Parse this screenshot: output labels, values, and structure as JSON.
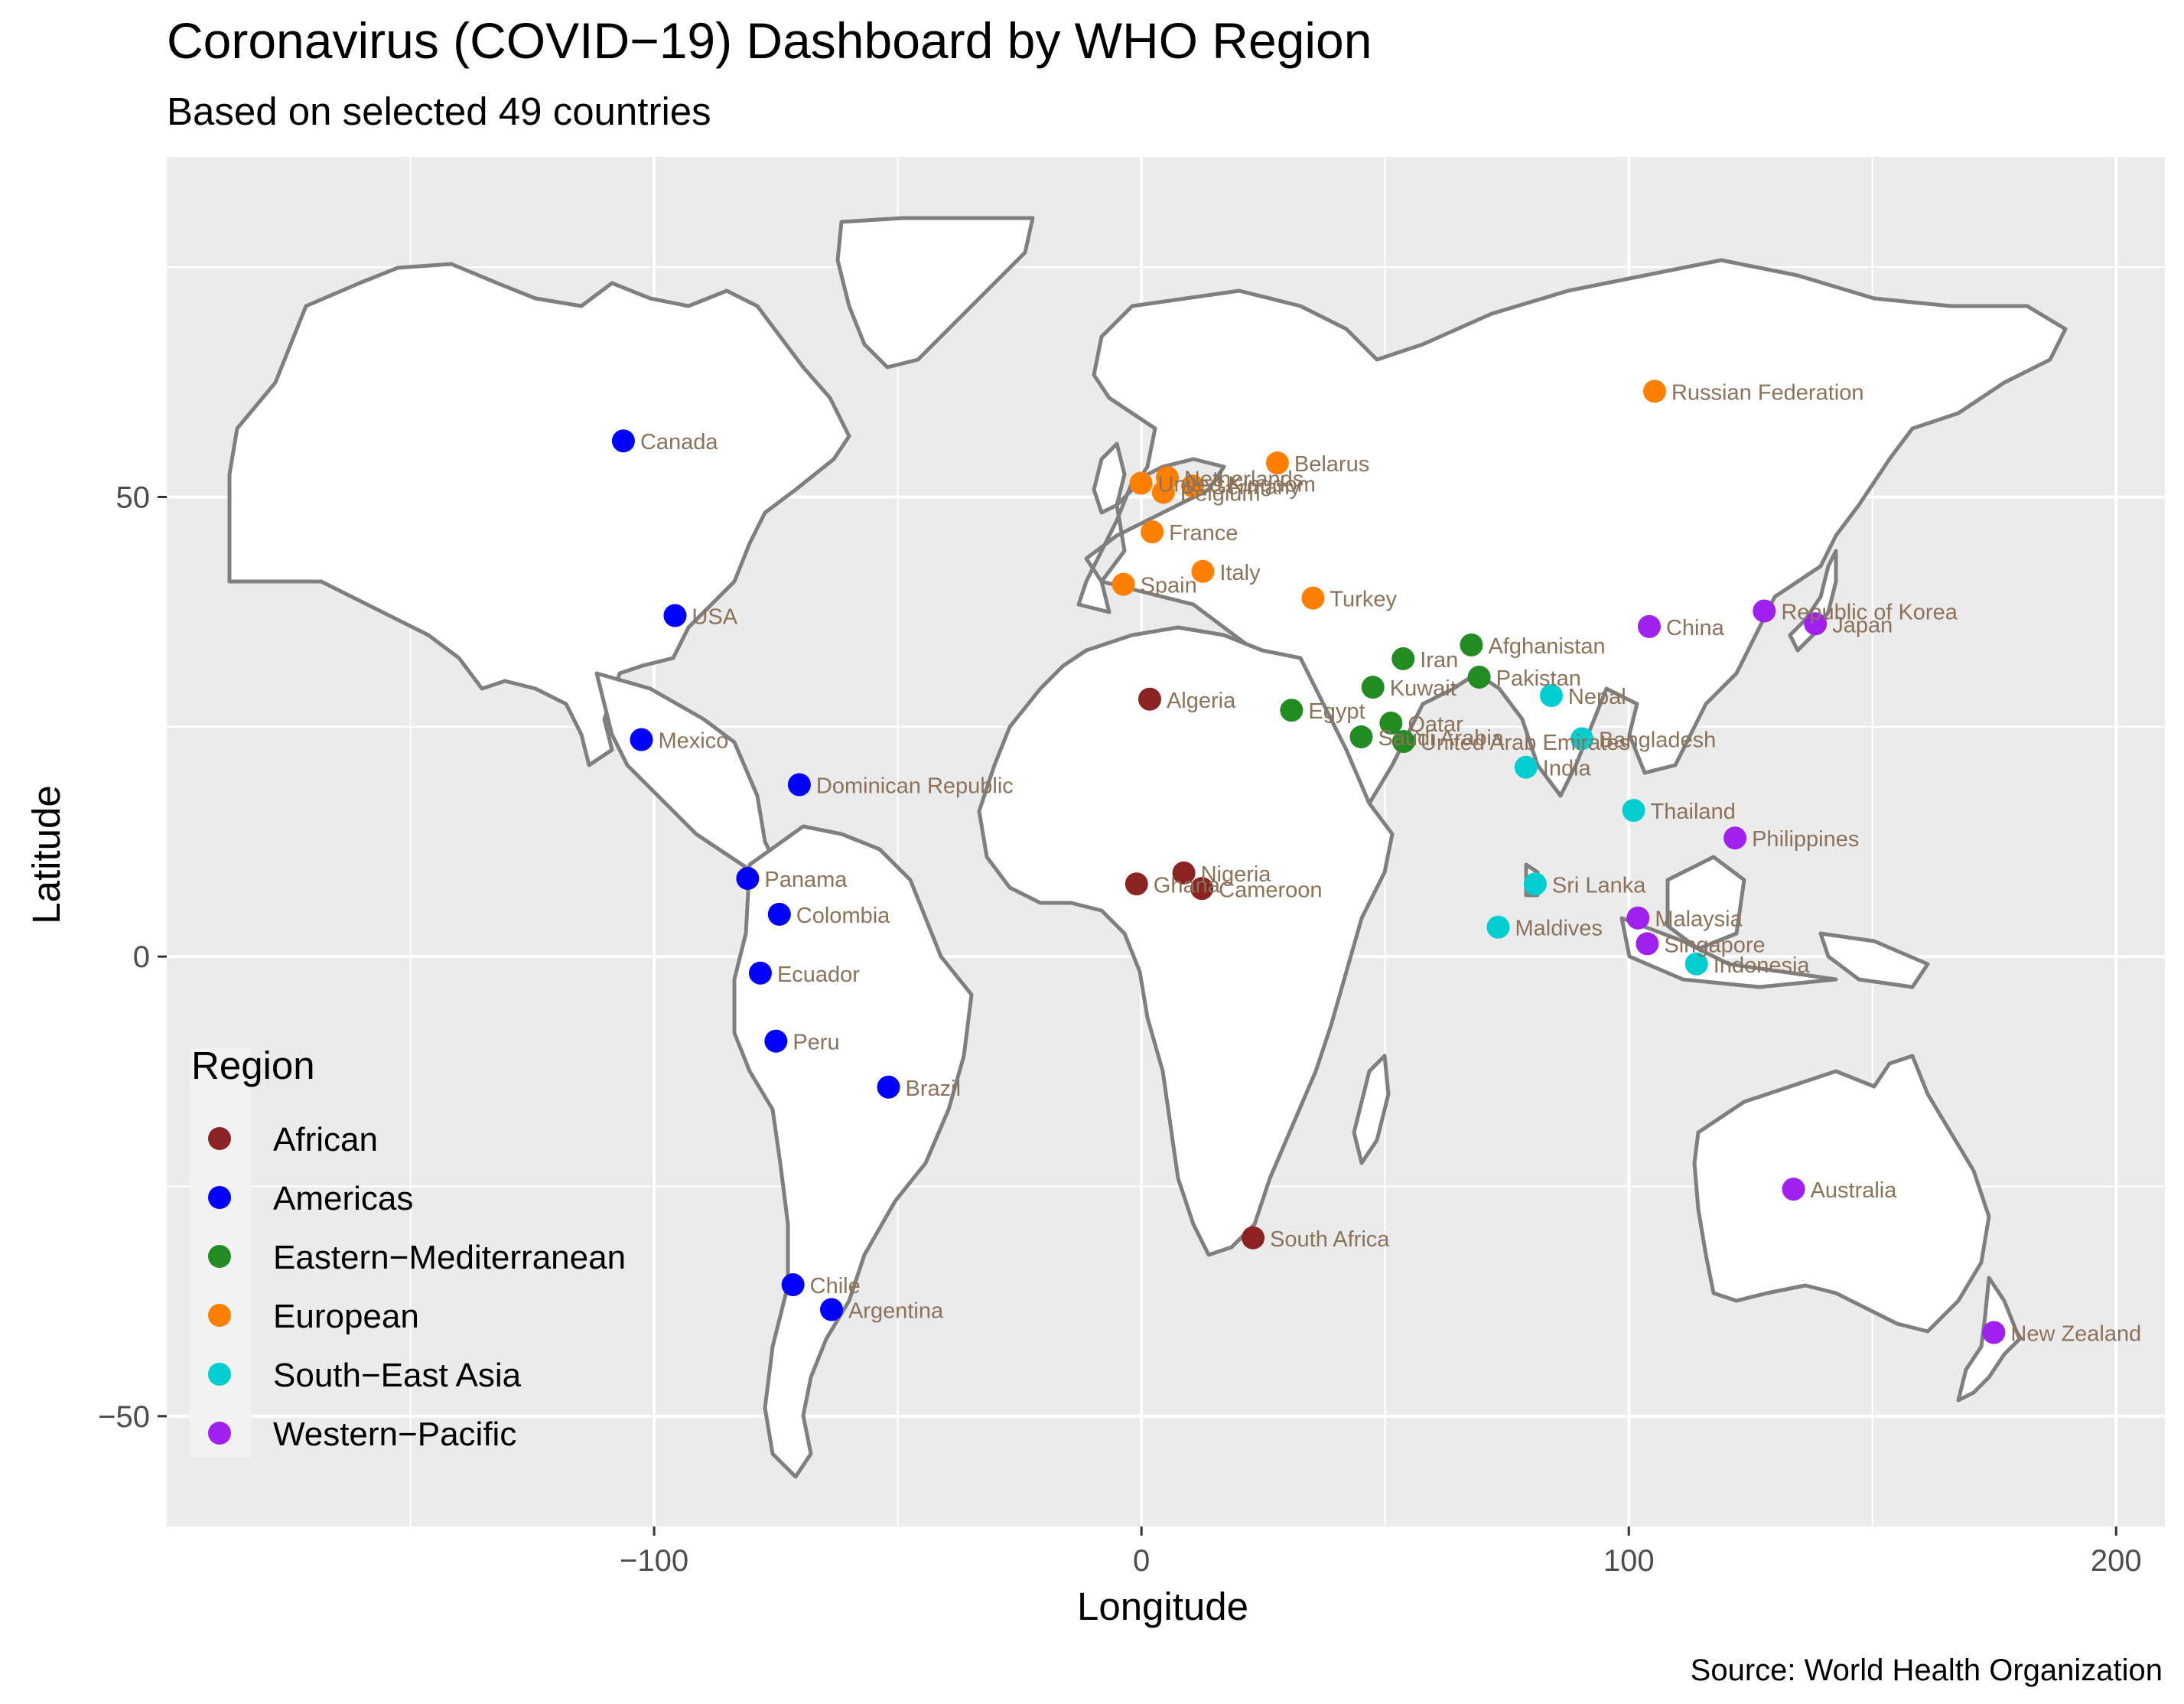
{
  "title": "Coronavirus (COVID−19) Dashboard by WHO Region",
  "subtitle": "Based on selected 49 countries",
  "caption": "Source: World Health Organization",
  "legend": {
    "title": "Region",
    "items": [
      {
        "label": "African",
        "color": "#8B2323"
      },
      {
        "label": "Americas",
        "color": "#0000FF"
      },
      {
        "label": "Eastern−Mediterranean",
        "color": "#228B22"
      },
      {
        "label": "European",
        "color": "#FF7F00"
      },
      {
        "label": "South−East Asia",
        "color": "#00CED1"
      },
      {
        "label": "Western−Pacific",
        "color": "#A020F0"
      }
    ]
  },
  "chart_data": {
    "type": "scatter",
    "xlabel": "Longitude",
    "ylabel": "Latitude",
    "xlim": [
      -200,
      210
    ],
    "ylim": [
      -62,
      87
    ],
    "x_ticks": [
      -100,
      0,
      100,
      200
    ],
    "x_tick_labels": [
      "−100",
      "0",
      "100",
      "200"
    ],
    "y_ticks": [
      -50,
      0,
      50
    ],
    "y_tick_labels": [
      "−50",
      "0",
      "50"
    ],
    "grid": true,
    "legend_position": "bottom-left",
    "points": [
      {
        "country": "Algeria",
        "region": "African",
        "lon": 1.7,
        "lat": 28.0
      },
      {
        "country": "Nigeria",
        "region": "African",
        "lon": 8.7,
        "lat": 9.1
      },
      {
        "country": "Cameroon",
        "region": "African",
        "lon": 12.4,
        "lat": 7.4
      },
      {
        "country": "Ghana",
        "region": "African",
        "lon": -1.0,
        "lat": 7.9
      },
      {
        "country": "South Africa",
        "region": "African",
        "lon": 22.9,
        "lat": -30.6
      },
      {
        "country": "Canada",
        "region": "Americas",
        "lon": -106.3,
        "lat": 56.1
      },
      {
        "country": "USA",
        "region": "Americas",
        "lon": -95.7,
        "lat": 37.1
      },
      {
        "country": "Mexico",
        "region": "Americas",
        "lon": -102.6,
        "lat": 23.6
      },
      {
        "country": "Dominican Republic",
        "region": "Americas",
        "lon": -70.2,
        "lat": 18.7
      },
      {
        "country": "Panama",
        "region": "Americas",
        "lon": -80.8,
        "lat": 8.5
      },
      {
        "country": "Colombia",
        "region": "Americas",
        "lon": -74.3,
        "lat": 4.6
      },
      {
        "country": "Ecuador",
        "region": "Americas",
        "lon": -78.2,
        "lat": -1.8
      },
      {
        "country": "Peru",
        "region": "Americas",
        "lon": -75.0,
        "lat": -9.2
      },
      {
        "country": "Brazil",
        "region": "Americas",
        "lon": -51.9,
        "lat": -14.2
      },
      {
        "country": "Chile",
        "region": "Americas",
        "lon": -71.5,
        "lat": -35.7
      },
      {
        "country": "Argentina",
        "region": "Americas",
        "lon": -63.6,
        "lat": -38.4
      },
      {
        "country": "Egypt",
        "region": "Eastern−Mediterranean",
        "lon": 30.8,
        "lat": 26.8
      },
      {
        "country": "Iran",
        "region": "Eastern−Mediterranean",
        "lon": 53.7,
        "lat": 32.4
      },
      {
        "country": "Kuwait",
        "region": "Eastern−Mediterranean",
        "lon": 47.5,
        "lat": 29.3
      },
      {
        "country": "Afghanistan",
        "region": "Eastern−Mediterranean",
        "lon": 67.7,
        "lat": 33.9
      },
      {
        "country": "Pakistan",
        "region": "Eastern−Mediterranean",
        "lon": 69.3,
        "lat": 30.4
      },
      {
        "country": "Qatar",
        "region": "Eastern−Mediterranean",
        "lon": 51.2,
        "lat": 25.4
      },
      {
        "country": "Saudi Arabia",
        "region": "Eastern−Mediterranean",
        "lon": 45.1,
        "lat": 23.9
      },
      {
        "country": "United Arab Emirates",
        "region": "Eastern−Mediterranean",
        "lon": 53.8,
        "lat": 23.4
      },
      {
        "country": "Netherlands",
        "region": "European",
        "lon": 5.3,
        "lat": 52.1
      },
      {
        "country": "Germany",
        "region": "European",
        "lon": 10.5,
        "lat": 51.2
      },
      {
        "country": "Belgium",
        "region": "European",
        "lon": 4.5,
        "lat": 50.5
      },
      {
        "country": "United Kingdom",
        "region": "European",
        "lon": -0.1,
        "lat": 51.5
      },
      {
        "country": "Belarus",
        "region": "European",
        "lon": 27.9,
        "lat": 53.7
      },
      {
        "country": "France",
        "region": "European",
        "lon": 2.2,
        "lat": 46.2
      },
      {
        "country": "Italy",
        "region": "European",
        "lon": 12.6,
        "lat": 41.9
      },
      {
        "country": "Spain",
        "region": "European",
        "lon": -3.7,
        "lat": 40.5
      },
      {
        "country": "Turkey",
        "region": "European",
        "lon": 35.2,
        "lat": 39.0
      },
      {
        "country": "Russian Federation",
        "region": "European",
        "lon": 105.3,
        "lat": 61.5
      },
      {
        "country": "Nepal",
        "region": "South−East Asia",
        "lon": 84.1,
        "lat": 28.4
      },
      {
        "country": "Bangladesh",
        "region": "South−East Asia",
        "lon": 90.4,
        "lat": 23.7
      },
      {
        "country": "India",
        "region": "South−East Asia",
        "lon": 78.9,
        "lat": 20.6
      },
      {
        "country": "Thailand",
        "region": "South−East Asia",
        "lon": 101.0,
        "lat": 15.9
      },
      {
        "country": "Sri Lanka",
        "region": "South−East Asia",
        "lon": 80.8,
        "lat": 7.9
      },
      {
        "country": "Maldives",
        "region": "South−East Asia",
        "lon": 73.2,
        "lat": 3.2
      },
      {
        "country": "Indonesia",
        "region": "South−East Asia",
        "lon": 113.9,
        "lat": -0.8
      },
      {
        "country": "China",
        "region": "Western−Pacific",
        "lon": 104.2,
        "lat": 35.9
      },
      {
        "country": "Republic of Korea",
        "region": "Western−Pacific",
        "lon": 127.8,
        "lat": 37.6
      },
      {
        "country": "Japan",
        "region": "Western−Pacific",
        "lon": 138.3,
        "lat": 36.2
      },
      {
        "country": "Philippines",
        "region": "Western−Pacific",
        "lon": 121.8,
        "lat": 12.9
      },
      {
        "country": "Malaysia",
        "region": "Western−Pacific",
        "lon": 101.9,
        "lat": 4.2
      },
      {
        "country": "Singapore",
        "region": "Western−Pacific",
        "lon": 103.8,
        "lat": 1.4
      },
      {
        "country": "Australia",
        "region": "Western−Pacific",
        "lon": 133.8,
        "lat": -25.3
      },
      {
        "country": "New Zealand",
        "region": "Western−Pacific",
        "lon": 174.9,
        "lat": -40.9
      }
    ]
  }
}
